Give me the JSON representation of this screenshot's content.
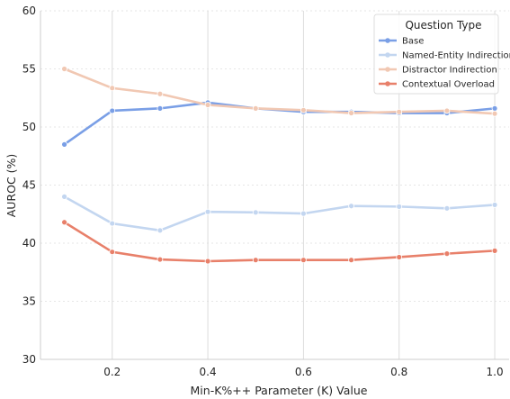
{
  "chart_data": {
    "type": "line",
    "xlabel": "Min-K%++ Parameter (K) Value",
    "ylabel": "AUROC (%)",
    "xlim": [
      0.05,
      1.03
    ],
    "ylim": [
      30,
      60
    ],
    "x_ticks": [
      "0.2",
      "0.4",
      "0.6",
      "0.8",
      "1.0"
    ],
    "y_ticks": [
      "30",
      "35",
      "40",
      "45",
      "50",
      "55",
      "60"
    ],
    "grid": true,
    "legend_title": "Question Type",
    "legend_position": "top-right",
    "x": [
      0.1,
      0.2,
      0.3,
      0.4,
      0.5,
      0.6,
      0.7,
      0.8,
      0.9,
      1.0
    ],
    "series": [
      {
        "name": "Base",
        "color": "#7a9fe6",
        "values": [
          48.5,
          51.4,
          51.6,
          52.1,
          51.6,
          51.3,
          51.3,
          51.2,
          51.2,
          51.6
        ]
      },
      {
        "name": "Named-Entity Indirection",
        "color": "#c3d6f0",
        "values": [
          44.0,
          41.7,
          41.1,
          42.7,
          42.65,
          42.55,
          43.2,
          43.15,
          43.0,
          43.3
        ]
      },
      {
        "name": "Distractor Indirection",
        "color": "#f1c8b3",
        "values": [
          55.0,
          53.35,
          52.85,
          51.9,
          51.6,
          51.45,
          51.2,
          51.3,
          51.4,
          51.15
        ]
      },
      {
        "name": "Contextual Overload",
        "color": "#e8806a",
        "values": [
          41.8,
          39.25,
          38.6,
          38.45,
          38.55,
          38.55,
          38.55,
          38.8,
          39.1,
          39.35
        ]
      }
    ]
  }
}
